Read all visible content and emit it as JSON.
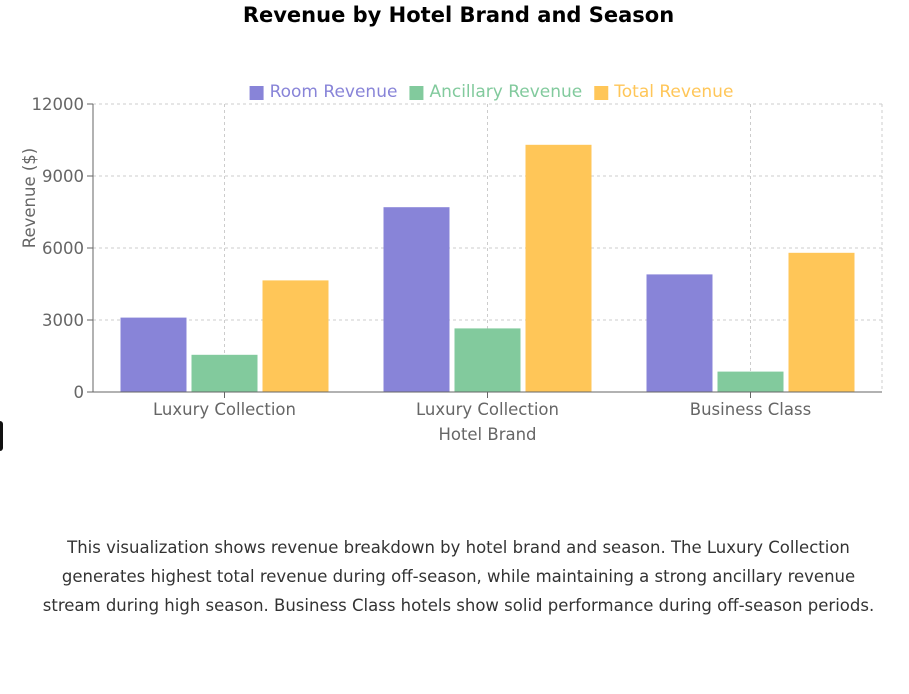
{
  "chart_data": {
    "type": "bar",
    "title": "Revenue by Hotel Brand and Season",
    "xlabel": "Hotel Brand",
    "ylabel": "Revenue ($)",
    "categories": [
      "Luxury Collection",
      "Luxury Collection",
      "Business Class"
    ],
    "ylim": [
      0,
      12000
    ],
    "yticks": [
      0,
      3000,
      6000,
      9000,
      12000
    ],
    "grid": true,
    "legend_position": "top",
    "series": [
      {
        "name": "Room Revenue",
        "color": "#8884d8",
        "values": [
          3100,
          7700,
          4900
        ]
      },
      {
        "name": "Ancillary Revenue",
        "color": "#82ca9d",
        "values": [
          1550,
          2650,
          850
        ]
      },
      {
        "name": "Total Revenue",
        "color": "#ffc658",
        "values": [
          4650,
          10300,
          5800
        ]
      }
    ]
  },
  "description": "This visualization shows revenue breakdown by hotel brand and season. The Luxury Collection generates highest total revenue during off-season, while maintaining a strong ancillary revenue stream during high season. Business Class hotels show solid performance during off-season periods."
}
